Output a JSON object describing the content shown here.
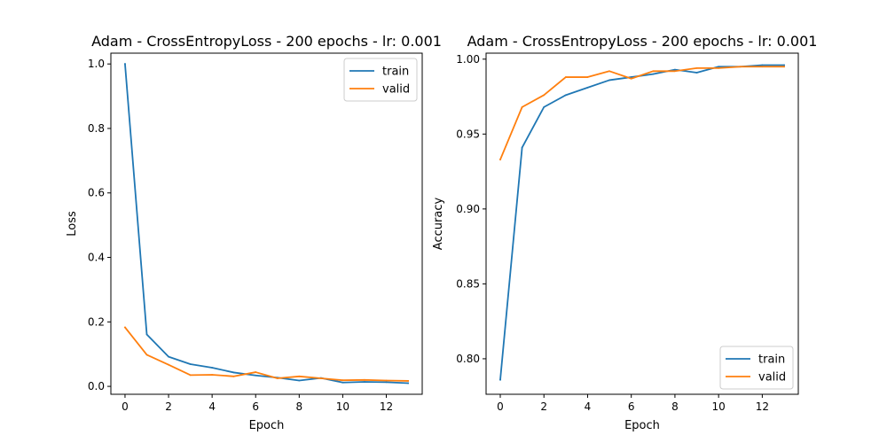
{
  "colors": {
    "train": "#1f77b4",
    "valid": "#ff7f0e"
  },
  "chart_data": [
    {
      "type": "line",
      "title": "Adam - CrossEntropyLoss - 200 epochs - lr: 0.001",
      "xlabel": "Epoch",
      "ylabel": "Loss",
      "xlim": [
        -0.65,
        13.65
      ],
      "ylim": [
        -0.0245,
        1.0335
      ],
      "xticks": [
        0,
        2,
        4,
        6,
        8,
        10,
        12
      ],
      "xtick_labels": [
        "0",
        "2",
        "4",
        "6",
        "8",
        "10",
        "12"
      ],
      "yticks": [
        0.0,
        0.2,
        0.4,
        0.6,
        0.8,
        1.0
      ],
      "ytick_labels": [
        "0.0",
        "0.2",
        "0.4",
        "0.6",
        "0.8",
        "1.0"
      ],
      "legend_position": "top-right",
      "grid": false,
      "x": [
        0,
        1,
        2,
        3,
        4,
        5,
        6,
        7,
        8,
        9,
        10,
        11,
        12,
        13
      ],
      "series": [
        {
          "name": "train",
          "values": [
            1.0,
            0.161,
            0.092,
            0.069,
            0.058,
            0.043,
            0.034,
            0.027,
            0.018,
            0.026,
            0.012,
            0.014,
            0.013,
            0.01
          ]
        },
        {
          "name": "valid",
          "values": [
            0.183,
            0.098,
            0.067,
            0.035,
            0.036,
            0.031,
            0.044,
            0.025,
            0.031,
            0.025,
            0.019,
            0.02,
            0.018,
            0.017
          ]
        }
      ]
    },
    {
      "type": "line",
      "title": "Adam - CrossEntropyLoss - 200 epochs - lr: 0.001",
      "xlabel": "Epoch",
      "ylabel": "Accuracy",
      "xlim": [
        -0.65,
        13.65
      ],
      "ylim": [
        0.7763,
        1.004
      ],
      "xticks": [
        0,
        2,
        4,
        6,
        8,
        10,
        12
      ],
      "xtick_labels": [
        "0",
        "2",
        "4",
        "6",
        "8",
        "10",
        "12"
      ],
      "yticks": [
        0.8,
        0.85,
        0.9,
        0.95,
        1.0
      ],
      "ytick_labels": [
        "0.80",
        "0.85",
        "0.90",
        "0.95",
        "1.00"
      ],
      "legend_position": "bottom-right",
      "grid": false,
      "x": [
        0,
        1,
        2,
        3,
        4,
        5,
        6,
        7,
        8,
        9,
        10,
        11,
        12,
        13
      ],
      "series": [
        {
          "name": "train",
          "values": [
            0.786,
            0.941,
            0.968,
            0.976,
            0.981,
            0.986,
            0.988,
            0.99,
            0.993,
            0.991,
            0.995,
            0.995,
            0.996,
            0.996
          ]
        },
        {
          "name": "valid",
          "values": [
            0.933,
            0.968,
            0.976,
            0.988,
            0.988,
            0.992,
            0.987,
            0.992,
            0.992,
            0.994,
            0.994,
            0.995,
            0.995,
            0.995
          ]
        }
      ]
    }
  ]
}
